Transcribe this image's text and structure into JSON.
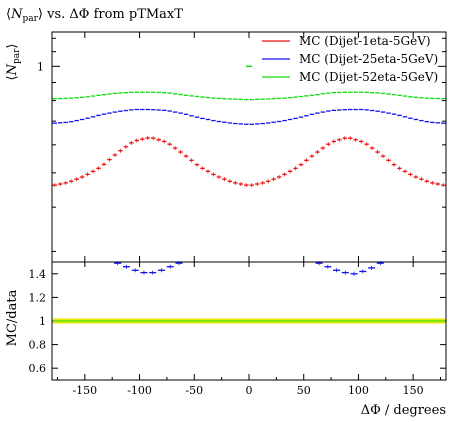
{
  "title": "⟨N_par⟩ vs. ΔΦ from pTMaxT",
  "title_parts": {
    "lhs": "N",
    "sub": "par",
    "rhs": "vs. ΔΦ from pTMaxT"
  },
  "ylabel_top": {
    "sym": "N",
    "sub": "par"
  },
  "ylabel_bottom": "MC/data",
  "xlabel": "ΔΦ / degrees",
  "legend": [
    {
      "label": "MC (Dijet-1eta-5GeV)",
      "color": "#ee1111"
    },
    {
      "label": "MC (Dijet-25eta-5GeV)",
      "color": "#1111ee"
    },
    {
      "label": "MC (Dijet-52eta-5GeV)",
      "color": "#11dd11"
    }
  ],
  "chart_data": [
    {
      "type": "scatter",
      "panel": "main",
      "xlim": [
        -180,
        180
      ],
      "ylim": [
        0.28,
        1.25
      ],
      "y_scale": "log",
      "yticks_major": [
        1
      ],
      "ytick_labels": [
        "1"
      ],
      "legend_position": "top-right",
      "grid": false,
      "series": [
        {
          "name": "MC (Dijet-1eta-5GeV)",
          "color": "#ee1111",
          "x": [
            -180,
            -165,
            -150,
            -135,
            -120,
            -105,
            -90,
            -75,
            -60,
            -45,
            -30,
            -15,
            0,
            15,
            30,
            45,
            60,
            75,
            90,
            105,
            120,
            135,
            150,
            165,
            180
          ],
          "y": [
            0.46,
            0.47,
            0.49,
            0.52,
            0.57,
            0.615,
            0.63,
            0.61,
            0.565,
            0.52,
            0.49,
            0.47,
            0.46,
            0.47,
            0.49,
            0.52,
            0.565,
            0.61,
            0.63,
            0.61,
            0.565,
            0.52,
            0.49,
            0.47,
            0.46
          ]
        },
        {
          "name": "MC (Dijet-25eta-5GeV)",
          "color": "#1111ee",
          "x": [
            -180,
            -165,
            -150,
            -135,
            -120,
            -105,
            -90,
            -75,
            -60,
            -45,
            -30,
            -15,
            0,
            15,
            30,
            45,
            60,
            75,
            90,
            105,
            120,
            135,
            150,
            165,
            180
          ],
          "y": [
            0.69,
            0.695,
            0.71,
            0.73,
            0.745,
            0.755,
            0.755,
            0.75,
            0.735,
            0.715,
            0.7,
            0.69,
            0.685,
            0.69,
            0.7,
            0.715,
            0.735,
            0.75,
            0.755,
            0.755,
            0.745,
            0.73,
            0.71,
            0.695,
            0.69
          ]
        },
        {
          "name": "MC (Dijet-52eta-5GeV)",
          "color": "#11dd11",
          "x": [
            -180,
            -165,
            -150,
            -135,
            -120,
            -105,
            -90,
            -75,
            -60,
            -45,
            -30,
            -15,
            0,
            15,
            30,
            45,
            60,
            75,
            90,
            105,
            120,
            135,
            150,
            165,
            180
          ],
          "y": [
            0.81,
            0.812,
            0.818,
            0.83,
            0.84,
            0.845,
            0.845,
            0.842,
            0.83,
            0.82,
            0.812,
            0.808,
            0.805,
            0.808,
            0.812,
            0.82,
            0.83,
            0.842,
            0.845,
            0.845,
            0.84,
            0.83,
            0.818,
            0.812,
            0.81
          ]
        }
      ]
    },
    {
      "type": "scatter",
      "panel": "ratio",
      "xlim": [
        -180,
        180
      ],
      "ylim": [
        0.5,
        1.5
      ],
      "yticks": [
        0.6,
        0.8,
        1,
        1.2,
        1.4
      ],
      "ytick_labels": [
        "0.6",
        "0.8",
        "1",
        "1.2",
        "1.4"
      ],
      "xticks": [
        -150,
        -100,
        -50,
        0,
        50,
        100,
        150
      ],
      "xtick_labels": [
        "-150",
        "-100",
        "-50",
        "0",
        "50",
        "100",
        "150"
      ],
      "reference_band": {
        "y": 1,
        "color": "#e8e800"
      },
      "series": [
        {
          "name": "MC (Dijet-25eta-5GeV)",
          "color": "#1111ee",
          "x": [
            -120,
            -112,
            -104,
            -96,
            -88,
            -80,
            -72,
            -64,
            64,
            72,
            80,
            88,
            96,
            104,
            112,
            120
          ],
          "y": [
            1.49,
            1.46,
            1.43,
            1.41,
            1.41,
            1.43,
            1.46,
            1.49,
            1.49,
            1.46,
            1.43,
            1.41,
            1.4,
            1.42,
            1.45,
            1.49
          ]
        },
        {
          "name": "MC (Dijet-1eta-5GeV)",
          "color": "#ee1111",
          "x": [],
          "y": []
        },
        {
          "name": "MC (Dijet-52eta-5GeV)",
          "color": "#11dd11",
          "x": [
            -180,
            180
          ],
          "y": [
            1,
            1
          ]
        }
      ]
    }
  ]
}
